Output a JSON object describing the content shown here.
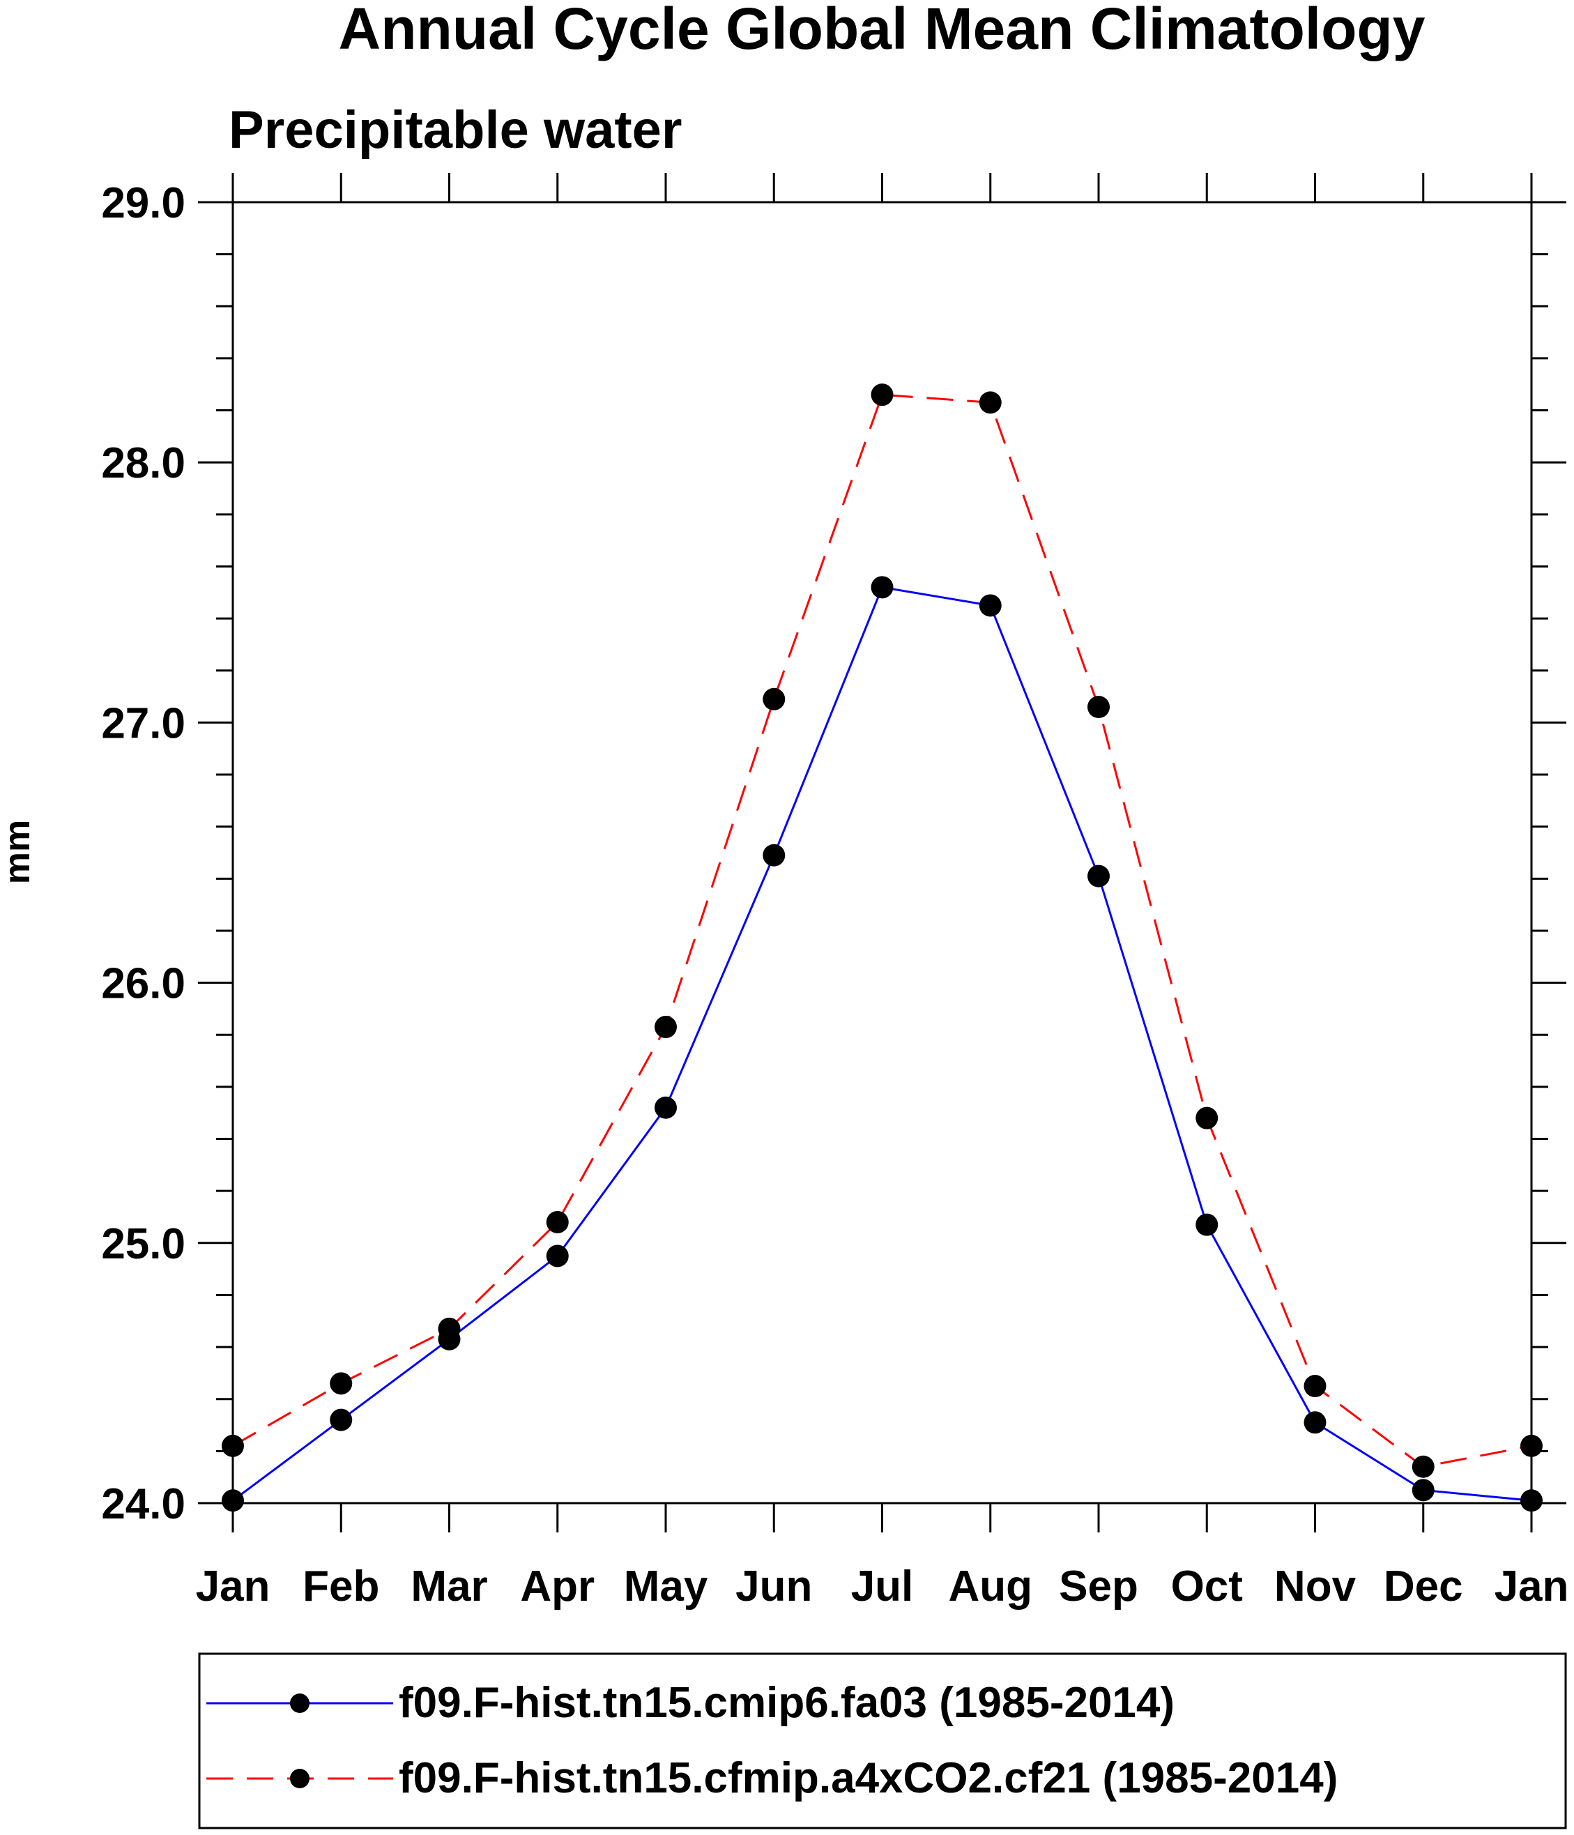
{
  "chart_data": {
    "type": "line",
    "title": "Annual Cycle Global Mean Climatology",
    "subtitle": "Precipitable water",
    "xlabel": "",
    "ylabel": "mm",
    "categories": [
      "Jan",
      "Feb",
      "Mar",
      "Apr",
      "May",
      "Jun",
      "Jul",
      "Aug",
      "Sep",
      "Oct",
      "Nov",
      "Dec",
      "Jan"
    ],
    "ylim": [
      24.0,
      29.0
    ],
    "yticks": [
      "24.0",
      "25.0",
      "26.0",
      "27.0",
      "28.0",
      "29.0"
    ],
    "grid": false,
    "legend_position": "bottom",
    "series": [
      {
        "name": "f09.F-hist.tn15.cmip6.fa03 (1985-2014)",
        "color": "#0000ff",
        "line_style": "solid",
        "marker": "filled-circle",
        "values": [
          24.01,
          24.32,
          24.63,
          24.95,
          25.52,
          26.49,
          27.52,
          27.45,
          26.41,
          25.07,
          24.31,
          24.05,
          24.01
        ]
      },
      {
        "name": "f09.F-hist.tn15.cfmip.a4xCO2.cf21 (1985-2014)",
        "color": "#ff0000",
        "line_style": "dashed",
        "marker": "filled-circle",
        "values": [
          24.22,
          24.46,
          24.67,
          25.08,
          25.83,
          27.09,
          28.26,
          28.23,
          27.06,
          25.48,
          24.45,
          24.14,
          24.22
        ]
      }
    ]
  }
}
